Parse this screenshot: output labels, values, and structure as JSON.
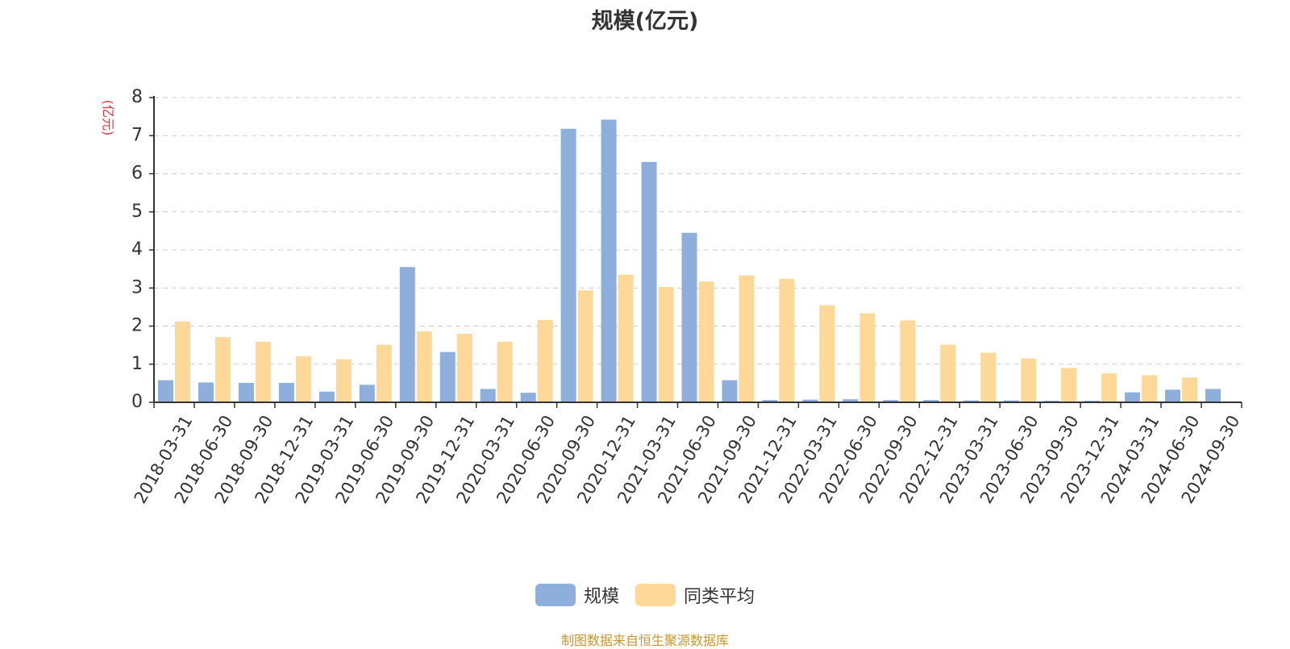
{
  "chart_data": {
    "type": "bar",
    "title": "规模(亿元)",
    "ylabel": "(亿元)",
    "ylim": [
      0,
      8
    ],
    "yticks": [
      0,
      1,
      2,
      3,
      4,
      5,
      6,
      7,
      8
    ],
    "grid": true,
    "legend_position": "bottom",
    "categories": [
      "2018-03-31",
      "2018-06-30",
      "2018-09-30",
      "2018-12-31",
      "2019-03-31",
      "2019-06-30",
      "2019-09-30",
      "2019-12-31",
      "2020-03-31",
      "2020-06-30",
      "2020-09-30",
      "2020-12-31",
      "2021-03-31",
      "2021-06-30",
      "2021-09-30",
      "2021-12-31",
      "2022-03-31",
      "2022-06-30",
      "2022-09-30",
      "2022-12-31",
      "2023-03-31",
      "2023-06-30",
      "2023-09-30",
      "2023-12-31",
      "2024-03-31",
      "2024-06-30",
      "2024-09-30"
    ],
    "series": [
      {
        "name": "规模",
        "color": "#8eaedb",
        "values": [
          0.58,
          0.52,
          0.51,
          0.51,
          0.28,
          0.46,
          3.55,
          1.32,
          0.35,
          0.25,
          7.18,
          7.42,
          6.31,
          4.45,
          0.58,
          0.06,
          0.07,
          0.08,
          0.06,
          0.06,
          0.05,
          0.05,
          0.04,
          0.04,
          0.26,
          0.33,
          0.35
        ]
      },
      {
        "name": "同类平均",
        "color": "#fdd898",
        "values": [
          2.12,
          1.71,
          1.59,
          1.21,
          1.13,
          1.51,
          1.86,
          1.8,
          1.59,
          2.16,
          2.94,
          3.35,
          3.03,
          3.17,
          3.33,
          3.24,
          2.55,
          2.34,
          2.15,
          1.51,
          1.3,
          1.15,
          0.9,
          0.76,
          0.71,
          0.65,
          null
        ]
      }
    ]
  },
  "source_note": "制图数据来自恒生聚源数据库",
  "colors": {
    "title": "#333333",
    "axis": "#333333",
    "ylabel": "#e8323c",
    "grid": "#cccccc",
    "source_note": "#c8962e"
  }
}
